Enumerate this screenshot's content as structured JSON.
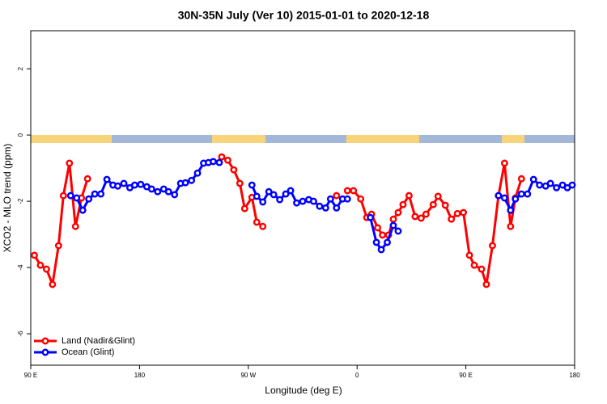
{
  "chart_data": {
    "type": "line",
    "title": "30N-35N July (Ver 10)   2015-01-01 to 2020-12-18",
    "x_label": "Longitude (deg E)",
    "y_label": "XCO2 - MLO trend (ppm)",
    "xlim": [
      90,
      540
    ],
    "ylim": [
      -6.95,
      3.15
    ],
    "xticks": [
      {
        "value": 90,
        "label": "90 E"
      },
      180,
      {
        "value": 270,
        "label": "90 W"
      },
      {
        "value": 360,
        "label": "0"
      },
      {
        "value": 450,
        "label": "90 E"
      },
      {
        "value": 540,
        "label": "180"
      }
    ],
    "yticks": [
      2,
      0,
      -2,
      -4,
      -6
    ],
    "legend": "bottom-left",
    "series": [
      {
        "name": "Land (Nadir&Glint)",
        "color": "#ff0000",
        "x": [
          93,
          98,
          103,
          108,
          113,
          117,
          122,
          127,
          132,
          137,
          140,
          248,
          253,
          258,
          263,
          267,
          273,
          277,
          282,
          285,
          343,
          346,
          352,
          357,
          363,
          368,
          372,
          377,
          381,
          386,
          390,
          394,
          398,
          403,
          408,
          413,
          417,
          423,
          427,
          433,
          438,
          443,
          448,
          453,
          457,
          463,
          467,
          472,
          477,
          482,
          487,
          491,
          496
        ],
        "values": [
          -3.63,
          -3.93,
          -4.05,
          -4.51,
          -3.34,
          -1.83,
          -0.85,
          -2.76,
          -1.9,
          -1.32,
          null,
          -0.66,
          -0.76,
          -1.05,
          -1.46,
          -2.22,
          -1.88,
          -2.63,
          -2.76,
          null,
          -1.83,
          null,
          -1.68,
          -1.68,
          -1.93,
          -2.49,
          -2.39,
          -2.8,
          -3.02,
          -3.02,
          -2.54,
          -2.34,
          -2.1,
          -1.83,
          -2.46,
          -2.51,
          -2.39,
          -2.1,
          -1.85,
          -2.12,
          -2.54,
          -2.37,
          -2.34,
          -3.63,
          -3.93,
          -4.05,
          -4.51,
          -3.34,
          -1.83,
          -0.85,
          -2.76,
          -1.9,
          -1.32
        ]
      },
      {
        "name": "Ocean (Glint)",
        "color": "#0000ff",
        "x": [
          123,
          128,
          133,
          138,
          143,
          148,
          153,
          158,
          162,
          167,
          172,
          176,
          181,
          186,
          190,
          195,
          200,
          204,
          209,
          214,
          218,
          223,
          228,
          233,
          237,
          241,
          246,
          260,
          273,
          277,
          282,
          287,
          291,
          296,
          301,
          305,
          310,
          315,
          320,
          324,
          329,
          334,
          338,
          343,
          348,
          352,
          365,
          371,
          376,
          380,
          385,
          390,
          394,
          440,
          477,
          482,
          487,
          491,
          496,
          501,
          506,
          511,
          516,
          520,
          525,
          530,
          534,
          538
        ],
        "values": [
          -1.83,
          -1.9,
          -2.27,
          -1.93,
          -1.78,
          -1.78,
          -1.34,
          -1.51,
          -1.54,
          -1.46,
          -1.59,
          -1.51,
          -1.49,
          -1.56,
          -1.63,
          -1.71,
          -1.63,
          -1.71,
          -1.8,
          -1.46,
          -1.44,
          -1.37,
          -1.15,
          -0.85,
          -0.83,
          -0.8,
          -0.83,
          null,
          -1.51,
          -1.85,
          -2.02,
          -1.71,
          -1.8,
          -1.95,
          -1.78,
          -1.68,
          -2.05,
          -2.0,
          -1.95,
          -2.0,
          -2.15,
          -2.2,
          -1.93,
          -2.2,
          -1.93,
          -1.93,
          null,
          -2.49,
          -3.24,
          -3.46,
          -3.24,
          -2.73,
          -2.9,
          null,
          -1.83,
          -1.9,
          -2.27,
          -1.93,
          -1.78,
          -1.78,
          -1.34,
          -1.51,
          -1.54,
          -1.46,
          -1.59,
          -1.51,
          -1.59,
          -1.51
        ]
      }
    ]
  }
}
